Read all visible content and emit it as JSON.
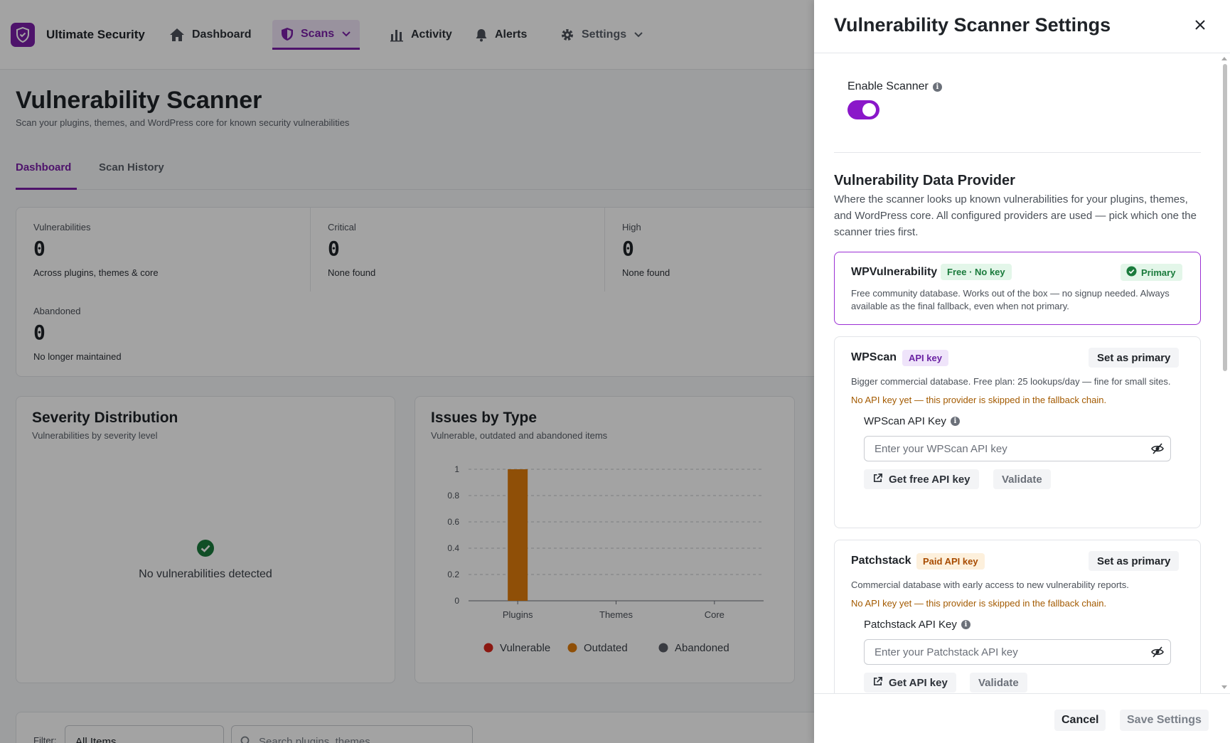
{
  "nav": {
    "brand": "Ultimate Security",
    "items": [
      {
        "label": "Dashboard",
        "icon": "home-icon"
      },
      {
        "label": "Scans",
        "icon": "shield-icon"
      },
      {
        "label": "Activity",
        "icon": "bar-chart-icon"
      },
      {
        "label": "Alerts",
        "icon": "bell-icon"
      },
      {
        "label": "Settings",
        "icon": "gear-icon"
      }
    ]
  },
  "page": {
    "title": "Vulnerability Scanner",
    "subtitle": "Scan your plugins, themes, and WordPress core for known security vulnerabilities",
    "tabs": [
      "Dashboard",
      "Scan History"
    ]
  },
  "stats": [
    {
      "label": "Vulnerabilities",
      "value": "0",
      "note": "Across plugins, themes & core"
    },
    {
      "label": "Critical",
      "value": "0",
      "note": "None found"
    },
    {
      "label": "High",
      "value": "0",
      "note": "None found"
    },
    {
      "label": "Abandoned",
      "value": "0",
      "note": "No longer maintained"
    }
  ],
  "severity_card": {
    "title": "Severity Distribution",
    "subtitle": "Vulnerabilities by severity level",
    "empty_text": "No vulnerabilities detected"
  },
  "issues_card": {
    "title": "Issues by Type",
    "subtitle": "Vulnerable, outdated and abandoned items"
  },
  "chart_data": {
    "type": "bar",
    "categories": [
      "Plugins",
      "Themes",
      "Core"
    ],
    "series": [
      {
        "name": "Vulnerable",
        "color": "#d9261c",
        "values": [
          0,
          0,
          0
        ]
      },
      {
        "name": "Outdated",
        "color": "#e07c0b",
        "values": [
          1,
          0,
          0
        ]
      },
      {
        "name": "Abandoned",
        "color": "#5a5d66",
        "values": [
          0,
          0,
          0
        ]
      }
    ],
    "ylim": [
      0,
      1
    ],
    "yticks": [
      "0",
      "0.2",
      "0.4",
      "0.6",
      "0.8",
      "1"
    ],
    "grid": true,
    "legend": "bottom"
  },
  "filter": {
    "label": "Filter:",
    "select_value": "All Items",
    "search_placeholder": "Search plugins, themes..."
  },
  "drawer": {
    "title": "Vulnerability Scanner Settings",
    "enable_label": "Enable Scanner",
    "enabled": true,
    "section_title": "Vulnerability Data Provider",
    "section_desc": "Where the scanner looks up known vulnerabilities for your plugins, themes, and WordPress core. All configured providers are used — pick which one the scanner tries first.",
    "providers": [
      {
        "name": "WPVulnerability",
        "tag": "Free · No key",
        "status": "Primary",
        "desc": "Free community database. Works out of the box — no signup needed. Always available as the final fallback, even when not primary."
      },
      {
        "name": "WPScan",
        "tag": "API key",
        "action": "Set as primary",
        "desc": "Bigger commercial database. Free plan: 25 lookups/day — fine for small sites.",
        "warning": "No API key yet — this provider is skipped in the fallback chain.",
        "key_label": "WPScan API Key",
        "key_placeholder": "Enter your WPScan API key",
        "link_label": "Get free API key",
        "validate_label": "Validate"
      },
      {
        "name": "Patchstack",
        "tag": "Paid API key",
        "action": "Set as primary",
        "desc": "Commercial database with early access to new vulnerability reports.",
        "warning": "No API key yet — this provider is skipped in the fallback chain.",
        "key_label": "Patchstack API Key",
        "key_placeholder": "Enter your Patchstack API key",
        "link_label": "Get API key",
        "validate_label": "Validate"
      }
    ],
    "cancel_label": "Cancel",
    "save_label": "Save Settings"
  },
  "colors": {
    "accent": "#7a1fa8",
    "success": "#1a7b3c",
    "warning": "#a35a00"
  }
}
